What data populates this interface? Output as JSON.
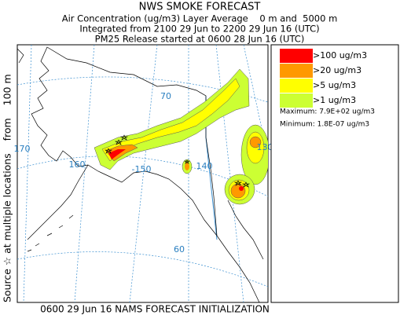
{
  "header": {
    "title": "NWS SMOKE FORECAST",
    "lines": [
      "Air Concentration (ug/m3) Layer Average    0 m and  5000 m",
      "Integrated from 2100 29 Jun to 2200 29 Jun 16 (UTC)",
      "PM25 Release started at 0600 28 Jun 16 (UTC)"
    ]
  },
  "source_label": "Source ☆ at multiple locations    from    100 m",
  "map": {
    "labels": [
      "70",
      "170",
      "160",
      "-150",
      "140",
      "130",
      "60"
    ]
  },
  "legend": {
    "items": [
      {
        "label": ">100 ug/m3",
        "color": "#ff0000"
      },
      {
        "label": ">20 ug/m3",
        "color": "#ff9900"
      },
      {
        "label": ">5 ug/m3",
        "color": "#ffff00"
      },
      {
        "label": ">1 ug/m3",
        "color": "#ccff33"
      }
    ],
    "maximum": "Maximum: 7.9E+02 ug/m3",
    "minimum": "Minimum: 1.8E-07 ug/m3"
  },
  "footer": "0600 29 Jun 16 NAMS FORECAST INITIALIZATION"
}
